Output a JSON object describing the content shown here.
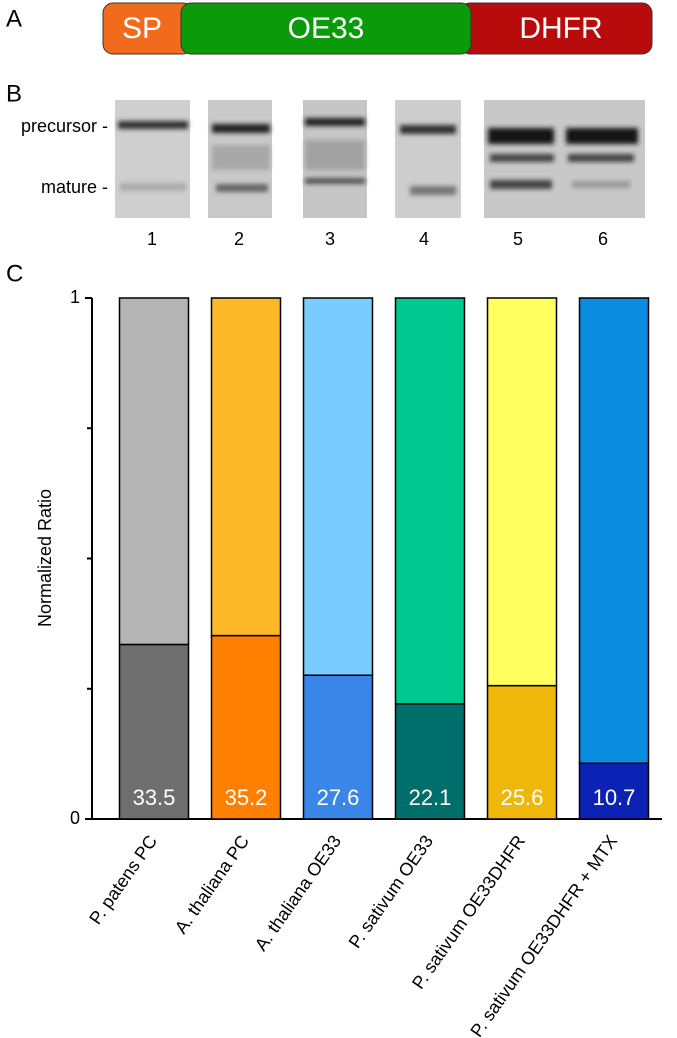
{
  "panel_a": {
    "label": "A",
    "segments": [
      "SP",
      "OE33",
      "DHFR"
    ]
  },
  "panel_b": {
    "label": "B",
    "band_labels": [
      "precursor -",
      "mature -"
    ],
    "lanes": [
      "1",
      "2",
      "3",
      "4",
      "5",
      "6"
    ]
  },
  "chart_data": {
    "type": "stacked-bar",
    "panel_label": "C",
    "ylabel": "Normalized Ratio",
    "categories": [
      "P. patens PC",
      "A. thaliana PC",
      "A. thaliana OE33",
      "P. sativum OE33",
      "P. sativum OE33DHFR",
      "P. sativum OE33DHFR + MTX"
    ],
    "series": [
      {
        "colors": [
          "#6f6f6f",
          "#ff7f00",
          "#3a86e8",
          "#006e6a",
          "#efb70a",
          "#0c22b4"
        ],
        "values": [
          0.335,
          0.352,
          0.276,
          0.221,
          0.256,
          0.107
        ],
        "value_labels": [
          "33.5",
          "35.2",
          "27.6",
          "22.1",
          "25.6",
          "10.7"
        ]
      },
      {
        "colors": [
          "#b4b4b4",
          "#fdb827",
          "#79ccfd",
          "#00c990",
          "#ffff60",
          "#0a8ce0"
        ],
        "values": [
          0.665,
          0.648,
          0.724,
          0.779,
          0.744,
          0.893
        ]
      }
    ],
    "ylim": [
      0,
      1
    ],
    "yticks": [
      0,
      1
    ],
    "minor_yticks": [
      0.25,
      0.5,
      0.75
    ]
  }
}
